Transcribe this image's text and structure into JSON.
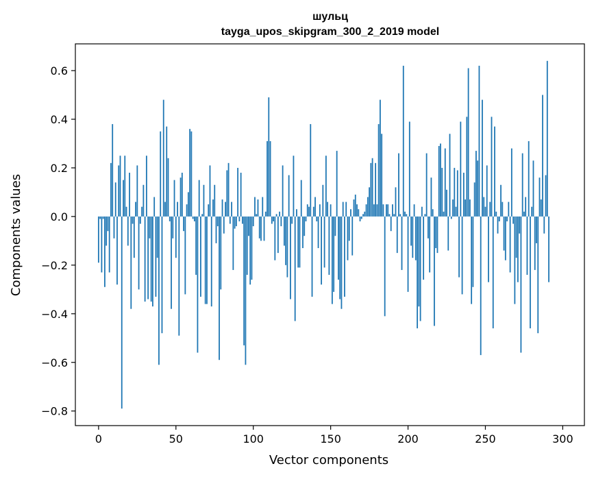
{
  "chart_data": {
    "type": "bar",
    "title_line1": "шульц",
    "title_line2": "tayga_upos_skipgram_300_2_2019 model",
    "xlabel": "Vector components",
    "ylabel": "Components values",
    "xlim": [
      -15,
      314
    ],
    "ylim": [
      -0.86,
      0.71
    ],
    "xticks": [
      0,
      50,
      100,
      150,
      200,
      250,
      300
    ],
    "xtick_labels": [
      "0",
      "50",
      "100",
      "150",
      "200",
      "250",
      "300"
    ],
    "yticks": [
      -0.8,
      -0.6,
      -0.4,
      -0.2,
      0.0,
      0.2,
      0.4,
      0.6
    ],
    "ytick_labels": [
      "−0.8",
      "−0.6",
      "−0.4",
      "−0.2",
      "0.0",
      "0.2",
      "0.4",
      "0.6"
    ],
    "bar_color": "#1f77b4",
    "grid": false,
    "values": [
      -0.19,
      -0.01,
      -0.23,
      -0.01,
      -0.29,
      -0.12,
      -0.06,
      -0.23,
      0.22,
      0.38,
      -0.09,
      0.14,
      -0.28,
      0.21,
      0.25,
      -0.79,
      0.15,
      0.25,
      0.04,
      -0.12,
      0.18,
      -0.38,
      -0.03,
      -0.17,
      0.06,
      0.21,
      -0.3,
      -0.03,
      0.04,
      0.13,
      -0.35,
      0.25,
      -0.34,
      -0.09,
      -0.35,
      -0.37,
      0.08,
      -0.33,
      -0.17,
      -0.61,
      0.35,
      -0.48,
      0.48,
      0.06,
      0.37,
      0.24,
      -0.02,
      -0.38,
      -0.09,
      0.15,
      -0.17,
      0.06,
      -0.49,
      0.16,
      0.18,
      -0.06,
      -0.32,
      0.05,
      0.1,
      0.36,
      0.35,
      -0.01,
      -0.02,
      -0.24,
      -0.56,
      0.15,
      -0.33,
      0.01,
      0.13,
      -0.36,
      -0.36,
      0.05,
      0.21,
      -0.37,
      0.07,
      0.13,
      -0.11,
      -0.04,
      -0.59,
      -0.3,
      0.07,
      -0.07,
      0.06,
      0.19,
      0.22,
      -0.03,
      0.06,
      -0.22,
      -0.05,
      -0.04,
      0.2,
      -0.02,
      0.18,
      -0.03,
      -0.53,
      -0.61,
      -0.24,
      -0.08,
      -0.28,
      -0.26,
      -0.04,
      0.08,
      0.01,
      0.07,
      -0.09,
      -0.1,
      0.08,
      -0.1,
      0.02,
      0.31,
      0.49,
      0.31,
      -0.03,
      -0.02,
      -0.18,
      0.01,
      -0.15,
      0.02,
      -0.04,
      0.21,
      -0.12,
      -0.2,
      -0.25,
      0.17,
      -0.34,
      -0.03,
      0.25,
      -0.43,
      0.03,
      -0.21,
      -0.21,
      0.15,
      -0.13,
      -0.08,
      -0.02,
      0.05,
      0.04,
      0.38,
      -0.33,
      0.04,
      0.08,
      -0.02,
      -0.13,
      0.05,
      -0.28,
      0.13,
      -0.21,
      0.25,
      0.06,
      -0.24,
      0.05,
      -0.36,
      -0.31,
      -0.08,
      0.27,
      -0.26,
      -0.34,
      -0.38,
      0.06,
      -0.33,
      0.06,
      -0.18,
      -0.1,
      0.03,
      -0.16,
      0.07,
      0.09,
      0.05,
      0.03,
      -0.02,
      -0.01,
      0.01,
      0.02,
      0.05,
      0.08,
      0.12,
      0.22,
      0.24,
      0.05,
      0.22,
      0.05,
      0.38,
      0.48,
      0.34,
      0.05,
      -0.41,
      0.05,
      0.05,
      0.01,
      -0.06,
      0.05,
      0.01,
      0.12,
      -0.15,
      0.26,
      0.01,
      -0.22,
      0.62,
      0.02,
      0.01,
      -0.31,
      0.39,
      -0.12,
      -0.17,
      0.05,
      -0.18,
      -0.46,
      -0.37,
      -0.43,
      0.04,
      -0.26,
      0.01,
      0.26,
      -0.09,
      -0.23,
      0.16,
      0.03,
      -0.45,
      -0.13,
      -0.15,
      0.29,
      0.3,
      0.2,
      0.02,
      0.28,
      0.11,
      -0.14,
      0.34,
      -0.01,
      0.07,
      0.2,
      0.04,
      0.19,
      -0.25,
      0.39,
      -0.32,
      0.18,
      0.07,
      0.41,
      0.61,
      0.07,
      -0.36,
      -0.29,
      0.14,
      0.27,
      0.23,
      0.62,
      -0.57,
      0.48,
      0.08,
      0.04,
      0.21,
      -0.27,
      0.06,
      0.41,
      -0.46,
      0.37,
      0.02,
      -0.07,
      -0.02,
      0.13,
      0.06,
      -0.14,
      -0.18,
      -0.02,
      0.06,
      -0.23,
      0.28,
      -0.03,
      -0.36,
      -0.17,
      -0.27,
      -0.07,
      -0.56,
      0.26,
      0.02,
      0.08,
      -0.24,
      0.31,
      -0.46,
      0.04,
      0.23,
      -0.22,
      -0.11,
      -0.48,
      0.16,
      0.07,
      0.5,
      -0.07,
      0.17,
      0.64,
      -0.27
    ]
  }
}
